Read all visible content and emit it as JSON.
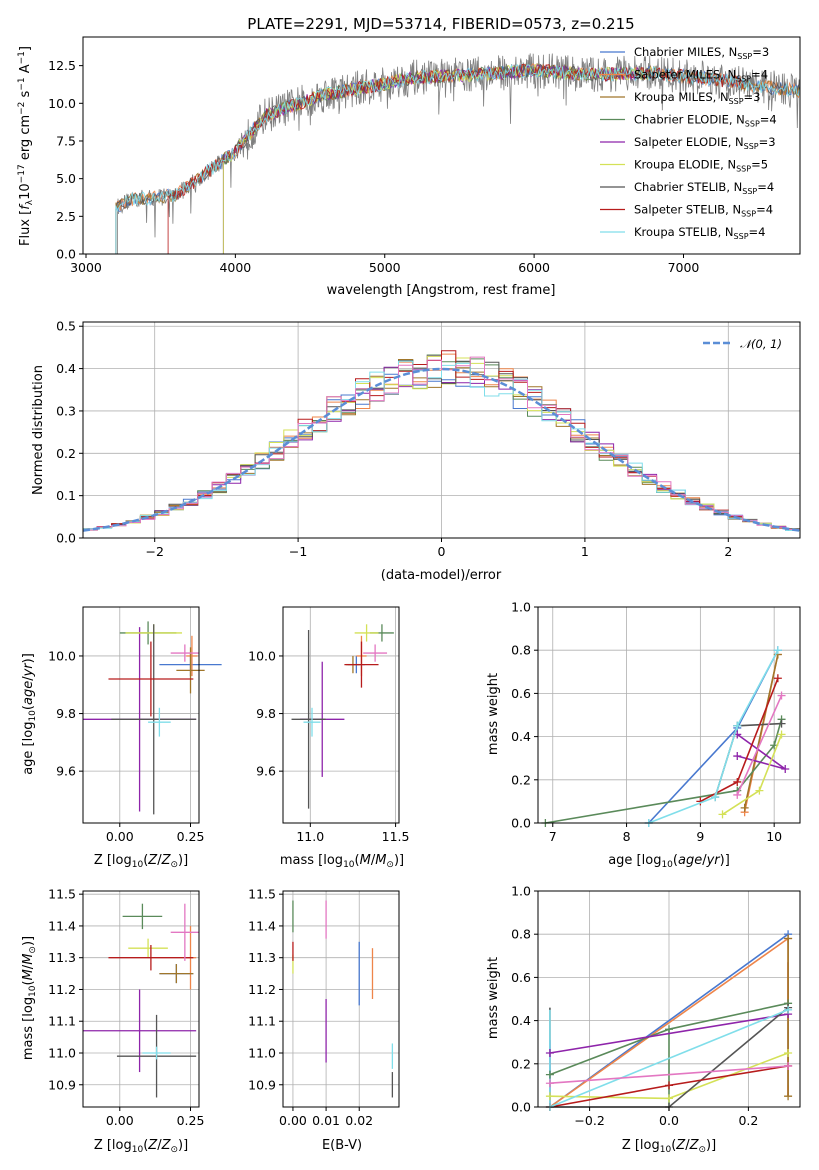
{
  "palette": {
    "Chabrier MILES": "#4878cf",
    "Salpeter MILES": "#ee854a",
    "Kroupa MILES": "#a0762a",
    "Chabrier ELODIE": "#5a8a5a",
    "Salpeter ELODIE": "#8e24aa",
    "Kroupa ELODIE": "#d4e157",
    "Chabrier STELIB": "#555555",
    "Salpeter STELIB": "#b71c1c",
    "Kroupa STELIB": "#80deea",
    "pink": "#e377c2",
    "gaussian": "#5b8ed6"
  },
  "chart_data": [
    {
      "id": "spectrum",
      "type": "line",
      "title": "PLATE=2291, MJD=53714, FIBERID=0573, z=0.215",
      "xlabel": "wavelength [Angstrom, rest frame]",
      "ylabel": "Flux [f_λ10^-17 erg cm^-2 s^-1 A^-1]",
      "ylabel_parts": {
        "a": "Flux [",
        "f": "f",
        "sub": "λ",
        "b": "10",
        "e1": "−17",
        "c": " erg cm",
        "e2": "−2",
        "d": " s",
        "e3": "−1",
        "g": " A",
        "e4": "−1",
        "h": "]"
      },
      "xlim": [
        2980,
        7780
      ],
      "ylim": [
        0,
        14.4
      ],
      "xticks": [
        3000,
        4000,
        5000,
        6000,
        7000
      ],
      "xtick_labels": [
        "3000",
        "4000",
        "5000",
        "6000",
        "7000"
      ],
      "yticks": [
        0.0,
        2.5,
        5.0,
        7.5,
        10.0,
        12.5
      ],
      "ytick_labels": [
        "0.0",
        "2.5",
        "5.0",
        "7.5",
        "10.0",
        "12.5"
      ],
      "continuum_x": [
        3200,
        3300,
        3600,
        4000,
        4200,
        4600,
        5000,
        5200,
        5600,
        6000,
        6400,
        6800,
        7200,
        7600,
        7780
      ],
      "continuum_y": [
        3.1,
        3.6,
        3.9,
        6.8,
        9.2,
        10.6,
        11.3,
        11.7,
        11.9,
        12.2,
        11.9,
        12.0,
        11.6,
        11.0,
        10.8
      ],
      "data_range": [
        3210,
        7780
      ],
      "model_ranges": [
        [
          3200,
          7780
        ],
        [
          3200,
          7780
        ],
        [
          3200,
          7780
        ],
        [
          3920,
          6780
        ],
        [
          3920,
          6780
        ],
        [
          3920,
          6780
        ],
        [
          3200,
          7780
        ],
        [
          3550,
          7400
        ],
        [
          3200,
          7780
        ]
      ],
      "legend": [
        {
          "name": "Chabrier MILES",
          "n": "3"
        },
        {
          "name": "Salpeter MILES",
          "n": "4"
        },
        {
          "name": "Kroupa MILES",
          "n": "3"
        },
        {
          "name": "Chabrier ELODIE",
          "n": "4"
        },
        {
          "name": "Salpeter ELODIE",
          "n": "3"
        },
        {
          "name": "Kroupa ELODIE",
          "n": "5"
        },
        {
          "name": "Chabrier STELIB",
          "n": "4"
        },
        {
          "name": "Salpeter STELIB",
          "n": "4"
        },
        {
          "name": "Kroupa STELIB",
          "n": "4"
        }
      ],
      "legend_sub": "SSP",
      "legend_prefix": "N",
      "legend_eq": "=",
      "legend_location": "right"
    },
    {
      "id": "residuals",
      "type": "histogram",
      "xlabel": "(data-model)/error",
      "ylabel": "Normed distribution",
      "xlim": [
        -2.5,
        2.5
      ],
      "ylim": [
        0,
        0.51
      ],
      "xticks": [
        -2,
        -1,
        0,
        1,
        2
      ],
      "xtick_labels": [
        "−2",
        "−1",
        "0",
        "1",
        "2"
      ],
      "yticks": [
        0.0,
        0.1,
        0.2,
        0.3,
        0.4,
        0.5
      ],
      "ytick_labels": [
        "0.0",
        "0.1",
        "0.2",
        "0.3",
        "0.4",
        "0.5"
      ],
      "grid": true,
      "bin_width": 0.1,
      "legend_label": "𝒩(0, 1)",
      "legend_location": "top-right"
    },
    {
      "id": "age-vs-Z",
      "type": "scatter",
      "xlabel": "Z [log10(Z/Z⊙)]",
      "ylabel": "age  [log10(age/yr)]",
      "xlim": [
        -0.13,
        0.28
      ],
      "ylim": [
        9.42,
        10.17
      ],
      "xticks": [
        0.0,
        0.25
      ],
      "xtick_labels": [
        "0.00",
        "0.25"
      ],
      "yticks": [
        9.6,
        9.8,
        10.0
      ],
      "ytick_labels": [
        "9.6",
        "9.8",
        "10.0"
      ],
      "grid": true,
      "points": [
        {
          "model": "Chabrier MILES",
          "x": 0.25,
          "y": 9.97,
          "xerr": 0.11,
          "yerr": 0.04
        },
        {
          "model": "Salpeter MILES",
          "x": 0.255,
          "y": 10.0,
          "xerr": 0.02,
          "yerr": 0.07
        },
        {
          "model": "Kroupa MILES",
          "x": 0.25,
          "y": 9.95,
          "xerr": 0.05,
          "yerr": 0.08
        },
        {
          "model": "Chabrier ELODIE",
          "x": 0.1,
          "y": 10.08,
          "xerr": 0.1,
          "yerr": 0.04
        },
        {
          "model": "Salpeter ELODIE",
          "x": 0.07,
          "y": 9.78,
          "xerr": 0.2,
          "yerr": 0.32
        },
        {
          "model": "Kroupa ELODIE",
          "x": 0.12,
          "y": 10.08,
          "xerr": 0.1,
          "yerr": 0.03
        },
        {
          "model": "Chabrier STELIB",
          "x": 0.12,
          "y": 9.78,
          "xerr": 0.15,
          "yerr": 0.33
        },
        {
          "model": "Salpeter STELIB",
          "x": 0.11,
          "y": 9.92,
          "xerr": 0.15,
          "yerr": 0.13
        },
        {
          "model": "Kroupa STELIB",
          "x": 0.14,
          "y": 9.77,
          "xerr": 0.04,
          "yerr": 0.05
        },
        {
          "model": "pink",
          "x": 0.23,
          "y": 10.01,
          "xerr": 0.05,
          "yerr": 0.03
        }
      ]
    },
    {
      "id": "age-vs-mass",
      "type": "scatter",
      "xlabel": "mass [log10(M/M⊙)]",
      "xlim": [
        10.84,
        11.52
      ],
      "ylim": [
        9.42,
        10.17
      ],
      "xticks": [
        11.0,
        11.5
      ],
      "xtick_labels": [
        "11.0",
        "11.5"
      ],
      "yticks": [
        9.6,
        9.8,
        10.0
      ],
      "ytick_labels": [
        "9.6",
        "9.8",
        "10.0"
      ],
      "grid": true,
      "points": [
        {
          "model": "Chabrier MILES",
          "x": 11.27,
          "y": 9.97,
          "xerr": 0.05,
          "yerr": 0.03
        },
        {
          "model": "Salpeter MILES",
          "x": 11.3,
          "y": 10.0,
          "xerr": 0.03,
          "yerr": 0.07
        },
        {
          "model": "Kroupa MILES",
          "x": 11.25,
          "y": 9.97,
          "xerr": 0.04,
          "yerr": 0.03
        },
        {
          "model": "Chabrier ELODIE",
          "x": 11.42,
          "y": 10.08,
          "xerr": 0.07,
          "yerr": 0.03
        },
        {
          "model": "Salpeter ELODIE",
          "x": 11.07,
          "y": 9.78,
          "xerr": 0.13,
          "yerr": 0.2
        },
        {
          "model": "Kroupa ELODIE",
          "x": 11.33,
          "y": 10.08,
          "xerr": 0.07,
          "yerr": 0.03
        },
        {
          "model": "Chabrier STELIB",
          "x": 10.99,
          "y": 9.78,
          "xerr": 0.1,
          "yerr": 0.31
        },
        {
          "model": "Salpeter STELIB",
          "x": 11.3,
          "y": 9.97,
          "xerr": 0.1,
          "yerr": 0.08
        },
        {
          "model": "Kroupa STELIB",
          "x": 11.01,
          "y": 9.77,
          "xerr": 0.05,
          "yerr": 0.05
        },
        {
          "model": "pink",
          "x": 11.38,
          "y": 10.01,
          "xerr": 0.07,
          "yerr": 0.03
        }
      ]
    },
    {
      "id": "weight-vs-age",
      "type": "line",
      "xlabel": "age  [log10(age/yr)]",
      "ylabel": "mass weight",
      "xlim": [
        6.8,
        10.35
      ],
      "ylim": [
        0,
        1.0
      ],
      "xticks": [
        7,
        8,
        9,
        10
      ],
      "xtick_labels": [
        "7",
        "8",
        "9",
        "10"
      ],
      "yticks": [
        0.0,
        0.2,
        0.4,
        0.6,
        0.8,
        1.0
      ],
      "ytick_labels": [
        "0.0",
        "0.2",
        "0.4",
        "0.6",
        "0.8",
        "1.0"
      ],
      "grid": true,
      "series": [
        {
          "model": "Chabrier MILES",
          "x": [
            8.3,
            9.5,
            10.05
          ],
          "y": [
            0.0,
            0.44,
            0.8
          ]
        },
        {
          "model": "Salpeter MILES",
          "x": [
            9.6,
            10.05
          ],
          "y": [
            0.05,
            0.78
          ]
        },
        {
          "model": "Kroupa MILES",
          "x": [
            9.6,
            10.05
          ],
          "y": [
            0.07,
            0.78
          ]
        },
        {
          "model": "Chabrier ELODIE",
          "x": [
            6.9,
            9.5,
            10.0,
            10.1
          ],
          "y": [
            0.0,
            0.15,
            0.36,
            0.48
          ]
        },
        {
          "model": "Salpeter ELODIE",
          "x": [
            9.5,
            10.15,
            9.5
          ],
          "y": [
            0.31,
            0.25,
            0.41
          ]
        },
        {
          "model": "Kroupa ELODIE",
          "x": [
            9.3,
            9.8,
            10.1
          ],
          "y": [
            0.04,
            0.15,
            0.41
          ]
        },
        {
          "model": "Chabrier STELIB",
          "x": [
            9.2,
            9.5,
            10.1
          ],
          "y": [
            0.12,
            0.45,
            0.46
          ]
        },
        {
          "model": "Salpeter STELIB",
          "x": [
            9.0,
            9.5,
            10.05
          ],
          "y": [
            0.1,
            0.19,
            0.67
          ]
        },
        {
          "model": "Kroupa STELIB",
          "x": [
            8.3,
            9.2,
            9.5,
            10.05
          ],
          "y": [
            0.0,
            0.12,
            0.45,
            0.8
          ]
        },
        {
          "model": "pink",
          "x": [
            9.5,
            10.1
          ],
          "y": [
            0.13,
            0.59
          ]
        }
      ]
    },
    {
      "id": "mass-vs-Z",
      "type": "scatter",
      "xlabel": "Z [log10(Z/Z⊙)]",
      "ylabel": "mass [log10(M/M⊙)]",
      "xlim": [
        -0.13,
        0.28
      ],
      "ylim": [
        10.83,
        11.51
      ],
      "xticks": [
        0.0,
        0.25
      ],
      "xtick_labels": [
        "0.00",
        "0.25"
      ],
      "yticks": [
        10.9,
        11.0,
        11.1,
        11.2,
        11.3,
        11.4,
        11.5
      ],
      "ytick_labels": [
        "10.9",
        "11.0",
        "11.1",
        "11.2",
        "11.3",
        "11.4",
        "11.5"
      ],
      "grid": true,
      "points": [
        {
          "model": "Chabrier MILES",
          "x": 0.2,
          "y": 11.25,
          "xerr": 0.06,
          "yerr": 0.03
        },
        {
          "model": "Salpeter MILES",
          "x": 0.25,
          "y": 11.3,
          "xerr": 0.02,
          "yerr": 0.1
        },
        {
          "model": "Kroupa MILES",
          "x": 0.2,
          "y": 11.25,
          "xerr": 0.06,
          "yerr": 0.03
        },
        {
          "model": "Chabrier ELODIE",
          "x": 0.08,
          "y": 11.43,
          "xerr": 0.07,
          "yerr": 0.04
        },
        {
          "model": "Salpeter ELODIE",
          "x": 0.07,
          "y": 11.07,
          "xerr": 0.2,
          "yerr": 0.13
        },
        {
          "model": "Kroupa ELODIE",
          "x": 0.1,
          "y": 11.33,
          "xerr": 0.07,
          "yerr": 0.03
        },
        {
          "model": "Chabrier STELIB",
          "x": 0.13,
          "y": 10.99,
          "xerr": 0.14,
          "yerr": 0.13
        },
        {
          "model": "Salpeter STELIB",
          "x": 0.11,
          "y": 11.3,
          "xerr": 0.15,
          "yerr": 0.04
        },
        {
          "model": "Kroupa STELIB",
          "x": 0.13,
          "y": 11.0,
          "xerr": 0.05,
          "yerr": 0.02
        },
        {
          "model": "pink",
          "x": 0.23,
          "y": 11.38,
          "xerr": 0.05,
          "yerr": 0.09
        }
      ]
    },
    {
      "id": "mass-vs-EBV",
      "type": "scatter",
      "xlabel": "E(B-V)",
      "xlim": [
        -0.003,
        0.032
      ],
      "ylim": [
        10.83,
        11.51
      ],
      "xticks": [
        0.0,
        0.01,
        0.02
      ],
      "xtick_labels": [
        "0.00",
        "0.01",
        "0.02"
      ],
      "yticks": [
        10.9,
        11.0,
        11.1,
        11.2,
        11.3,
        11.4,
        11.5
      ],
      "ytick_labels": [
        "10.9",
        "11.0",
        "11.1",
        "11.2",
        "11.3",
        "11.4",
        "11.5"
      ],
      "grid": true,
      "points": [
        {
          "model": "Chabrier MILES",
          "x": 0.02,
          "y": 11.25,
          "xerr": 0,
          "yerr": 0.1
        },
        {
          "model": "Salpeter MILES",
          "x": 0.024,
          "y": 11.25,
          "xerr": 0,
          "yerr": 0.08
        },
        {
          "model": "Chabrier ELODIE",
          "x": 0.0,
          "y": 11.43,
          "xerr": 0,
          "yerr": 0.05
        },
        {
          "model": "Salpeter ELODIE",
          "x": 0.01,
          "y": 11.07,
          "xerr": 0,
          "yerr": 0.1
        },
        {
          "model": "Kroupa ELODIE",
          "x": 0.0,
          "y": 11.28,
          "xerr": 0,
          "yerr": 0.03
        },
        {
          "model": "Salpeter STELIB",
          "x": 0.0,
          "y": 11.32,
          "xerr": 0,
          "yerr": 0.03
        },
        {
          "model": "Kroupa STELIB",
          "x": 0.03,
          "y": 10.99,
          "xerr": 0,
          "yerr": 0.04
        },
        {
          "model": "Chabrier STELIB",
          "x": 0.03,
          "y": 10.9,
          "xerr": 0,
          "yerr": 0.04
        },
        {
          "model": "pink",
          "x": 0.01,
          "y": 11.42,
          "xerr": 0,
          "yerr": 0.06
        }
      ]
    },
    {
      "id": "weight-vs-Z",
      "type": "line",
      "xlabel": "Z [log10(Z/Z⊙)]",
      "ylabel": "mass weight",
      "xlim": [
        -0.33,
        0.33
      ],
      "ylim": [
        0,
        1.0
      ],
      "xticks": [
        -0.2,
        0.0,
        0.2
      ],
      "xtick_labels": [
        "−0.2",
        "0.0",
        "0.2"
      ],
      "yticks": [
        0.0,
        0.2,
        0.4,
        0.6,
        0.8,
        1.0
      ],
      "ytick_labels": [
        "0.0",
        "0.2",
        "0.4",
        "0.6",
        "0.8",
        "1.0"
      ],
      "grid": true,
      "series": [
        {
          "model": "Chabrier MILES",
          "x": [
            -0.3,
            0.3
          ],
          "y": [
            0.0,
            0.8
          ]
        },
        {
          "model": "Salpeter MILES",
          "x": [
            -0.3,
            0.3
          ],
          "y": [
            0.0,
            0.78
          ]
        },
        {
          "model": "Kroupa MILES",
          "x": [
            0.3,
            0.3
          ],
          "y": [
            0.05,
            0.78
          ]
        },
        {
          "model": "Chabrier ELODIE",
          "x": [
            -0.3,
            0.0,
            0.3
          ],
          "y": [
            0.15,
            0.36,
            0.48
          ]
        },
        {
          "model": "Salpeter ELODIE",
          "x": [
            -0.3,
            0.3
          ],
          "y": [
            0.25,
            0.43
          ]
        },
        {
          "model": "Kroupa ELODIE",
          "x": [
            -0.3,
            0.0,
            0.3
          ],
          "y": [
            0.05,
            0.04,
            0.25
          ]
        },
        {
          "model": "Chabrier STELIB",
          "x": [
            -0.3,
            0.0,
            0.3
          ],
          "y": [
            0.0,
            0.0,
            0.46
          ]
        },
        {
          "model": "Salpeter STELIB",
          "x": [
            -0.3,
            0.0,
            0.3
          ],
          "y": [
            0.0,
            0.1,
            0.19
          ]
        },
        {
          "model": "Kroupa STELIB",
          "x": [
            -0.3,
            0.3
          ],
          "y": [
            0.0,
            0.45
          ]
        },
        {
          "model": "pink",
          "x": [
            -0.3,
            0.3
          ],
          "y": [
            0.11,
            0.19
          ]
        }
      ],
      "stems": [
        {
          "model": "Chabrier STELIB",
          "x": -0.3,
          "y0": 0.0,
          "y1": 0.46
        },
        {
          "model": "Chabrier MILES",
          "x": -0.3,
          "y0": 0.0,
          "y1": 0.31
        },
        {
          "model": "Kroupa STELIB",
          "x": -0.3,
          "y0": 0.0,
          "y1": 0.45
        },
        {
          "model": "Chabrier ELODIE",
          "x": 0.0,
          "y0": 0.0,
          "y1": 0.36
        },
        {
          "model": "Salpeter STELIB",
          "x": 0.3,
          "y0": 0.05,
          "y1": 0.67
        },
        {
          "model": "Kroupa STELIB",
          "x": 0.3,
          "y0": 0.1,
          "y1": 0.45
        },
        {
          "model": "Salpeter MILES",
          "x": 0.3,
          "y0": 0.05,
          "y1": 0.78
        }
      ]
    }
  ]
}
